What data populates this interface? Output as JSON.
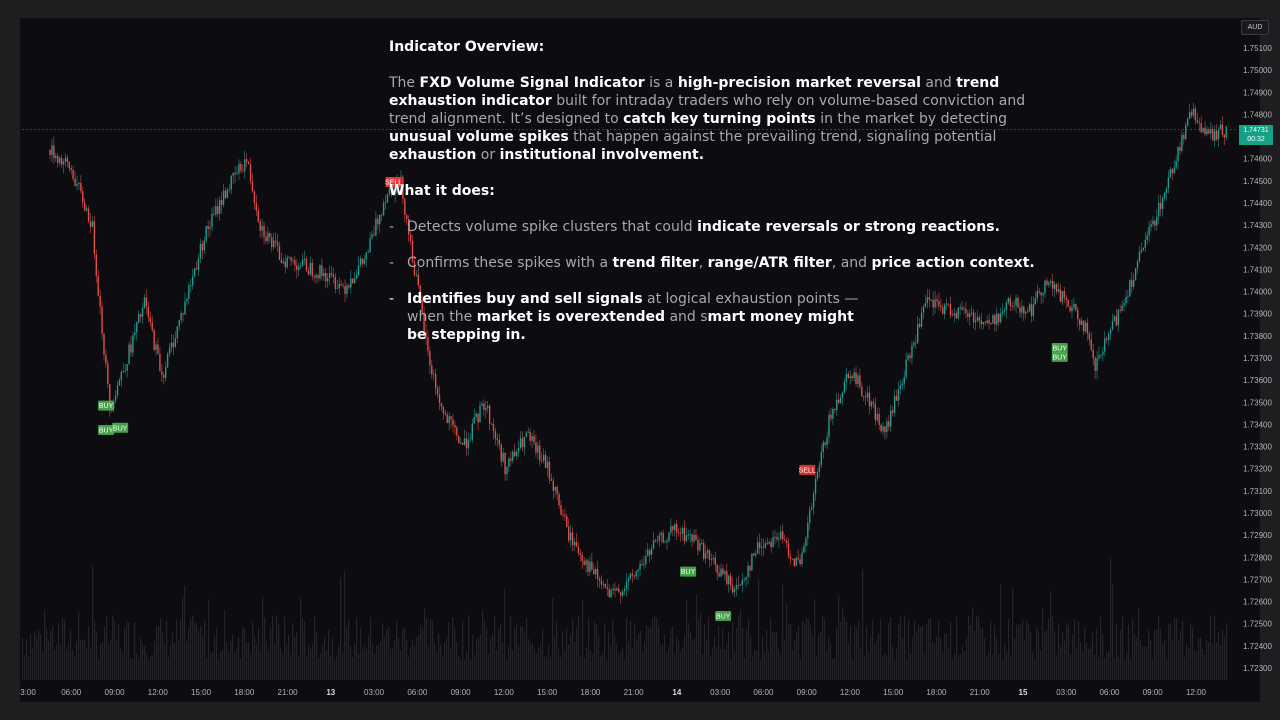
{
  "app": {
    "currency_badge": "AUD"
  },
  "overlay": {
    "overview_title": "Indicator Overview:",
    "para_1": "The ",
    "para_2": "FXD Volume Signal Indicator",
    "para_3": " is a ",
    "para_4": "high-precision market reversal",
    "para_5": " and ",
    "para_6": "trend exhaustion indicator",
    "para_7": " built for intraday traders who rely on volume-based conviction and trend alignment. It’s designed to ",
    "para_8": "catch key turning points",
    "para_9": " in the market by detecting ",
    "para_10": "unusual volume spikes",
    "para_11": " that happen against the prevailing trend, signaling potential ",
    "para_12": "exhaustion",
    "para_13": " or ",
    "para_14": "institutional involvement",
    "para_15": ".",
    "what_title": "What it does:",
    "dash": "-",
    "b1_a": "Detects volume spike clusters that could ",
    "b1_b": "indicate reversals or strong reactions",
    "b1_c": ".",
    "b2_a": "Confirms these spikes with a ",
    "b2_b": "trend filter",
    "b2_c": ", ",
    "b2_d": "range/ATR filter",
    "b2_e": ", and ",
    "b2_f": "price action context",
    "b2_g": ".",
    "b3_a": "Identifies buy and sell signals",
    "b3_b": " at logical exhaustion points — when the ",
    "b3_c": "market is overextended",
    "b3_d": " and s",
    "b3_e": "mart money might be stepping in",
    "b3_f": "."
  },
  "price_tag": {
    "price": "1.74731",
    "countdown": "00:32"
  },
  "colors": {
    "up": "#26a69a",
    "down": "#ef5350",
    "buy": "#4caf50",
    "sell": "#e53935",
    "last_price": "#16a085"
  },
  "chart_data": {
    "type": "candlestick",
    "y_axis_labels": [
      "1.75100",
      "1.75000",
      "1.74900",
      "1.74800",
      "1.74700",
      "1.74600",
      "1.74500",
      "1.74400",
      "1.74300",
      "1.74200",
      "1.74100",
      "1.74000",
      "1.73900",
      "1.73800",
      "1.73700",
      "1.73600",
      "1.73500",
      "1.73400",
      "1.73300",
      "1.73200",
      "1.73100",
      "1.73000",
      "1.72900",
      "1.72800",
      "1.72700",
      "1.72600",
      "1.72500",
      "1.72400",
      "1.72300"
    ],
    "ylim": [
      1.7225,
      1.7515
    ],
    "x_axis_labels": [
      "3:00",
      "06:00",
      "09:00",
      "12:00",
      "15:00",
      "18:00",
      "21:00",
      "13",
      "03:00",
      "06:00",
      "09:00",
      "12:00",
      "15:00",
      "18:00",
      "21:00",
      "14",
      "03:00",
      "06:00",
      "09:00",
      "12:00",
      "15:00",
      "18:00",
      "21:00",
      "15",
      "03:00",
      "06:00",
      "09:00",
      "12:00"
    ],
    "day_labels": [
      "13",
      "14",
      "15"
    ],
    "last_price": 1.74731,
    "price_path": [
      [
        0,
        1.7464
      ],
      [
        6,
        1.7455
      ],
      [
        12,
        1.743
      ],
      [
        17,
        1.7348
      ],
      [
        22,
        1.737
      ],
      [
        27,
        1.7395
      ],
      [
        32,
        1.7362
      ],
      [
        38,
        1.7392
      ],
      [
        44,
        1.7425
      ],
      [
        50,
        1.7445
      ],
      [
        56,
        1.746
      ],
      [
        60,
        1.743
      ],
      [
        66,
        1.7415
      ],
      [
        72,
        1.7412
      ],
      [
        78,
        1.7408
      ],
      [
        84,
        1.7402
      ],
      [
        90,
        1.7415
      ],
      [
        96,
        1.7445
      ],
      [
        100,
        1.745
      ],
      [
        104,
        1.741
      ],
      [
        108,
        1.737
      ],
      [
        112,
        1.7345
      ],
      [
        118,
        1.733
      ],
      [
        124,
        1.735
      ],
      [
        130,
        1.732
      ],
      [
        136,
        1.7335
      ],
      [
        142,
        1.732
      ],
      [
        148,
        1.729
      ],
      [
        154,
        1.7275
      ],
      [
        160,
        1.7262
      ],
      [
        166,
        1.727
      ],
      [
        172,
        1.7285
      ],
      [
        178,
        1.7292
      ],
      [
        184,
        1.7288
      ],
      [
        190,
        1.7275
      ],
      [
        196,
        1.7265
      ],
      [
        202,
        1.7285
      ],
      [
        208,
        1.729
      ],
      [
        214,
        1.7275
      ],
      [
        218,
        1.731
      ],
      [
        222,
        1.734
      ],
      [
        228,
        1.7365
      ],
      [
        234,
        1.735
      ],
      [
        238,
        1.7335
      ],
      [
        244,
        1.7365
      ],
      [
        250,
        1.7395
      ],
      [
        256,
        1.7392
      ],
      [
        262,
        1.739
      ],
      [
        268,
        1.7385
      ],
      [
        274,
        1.7395
      ],
      [
        280,
        1.7392
      ],
      [
        284,
        1.7405
      ],
      [
        290,
        1.7395
      ],
      [
        295,
        1.7385
      ],
      [
        298,
        1.7365
      ],
      [
        302,
        1.738
      ],
      [
        306,
        1.7395
      ],
      [
        312,
        1.742
      ],
      [
        318,
        1.7445
      ],
      [
        322,
        1.7465
      ],
      [
        326,
        1.7482
      ],
      [
        330,
        1.747
      ],
      [
        336,
        1.7473
      ]
    ],
    "signals": [
      {
        "label": "BUY",
        "t": 16,
        "price": 1.73485
      },
      {
        "label": "BUY",
        "t": 16,
        "price": 1.73375
      },
      {
        "label": "BUY",
        "t": 20,
        "price": 1.73385
      },
      {
        "label": "SELL",
        "t": 98,
        "price": 1.74495
      },
      {
        "label": "SELL",
        "t": 98,
        "price": 1.74495
      },
      {
        "label": "BUY",
        "t": 182,
        "price": 1.72735
      },
      {
        "label": "BUY",
        "t": 192,
        "price": 1.72535
      },
      {
        "label": "SELL",
        "t": 216,
        "price": 1.73195
      },
      {
        "label": "BUY",
        "t": 288,
        "price": 1.73745
      },
      {
        "label": "BUY",
        "t": 288,
        "price": 1.73705
      }
    ],
    "volume": "low-opacity grey histogram along the bottom of the pane",
    "grid": false,
    "legend": "none"
  }
}
